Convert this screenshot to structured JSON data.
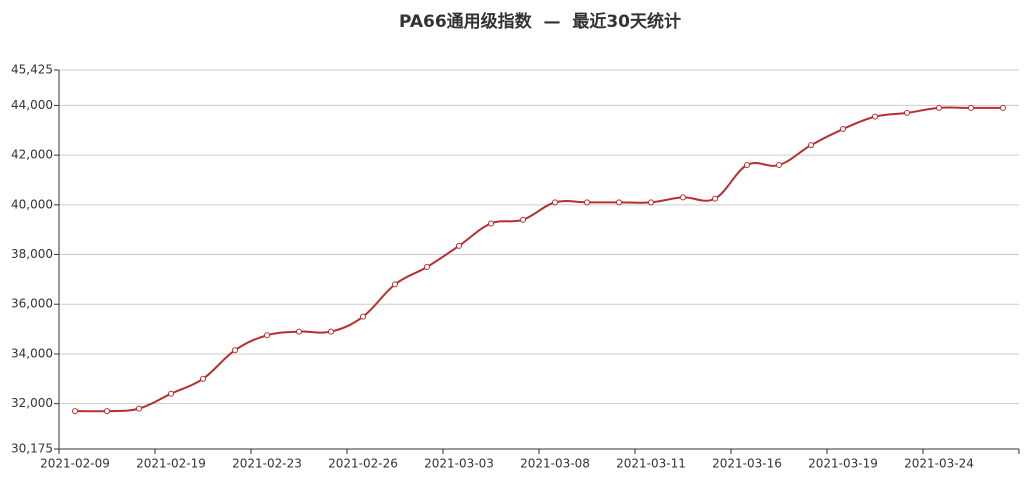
{
  "chart_data": {
    "type": "line",
    "title": "PA66通用级指数  —  最近30天统计",
    "categories": [
      "2021-02-09",
      null,
      null,
      "2021-02-19",
      null,
      null,
      "2021-02-23",
      null,
      null,
      "2021-02-26",
      null,
      null,
      "2021-03-03",
      null,
      null,
      "2021-03-08",
      null,
      null,
      "2021-03-11",
      null,
      null,
      "2021-03-16",
      null,
      null,
      "2021-03-19",
      null,
      null,
      "2021-03-24",
      null,
      null
    ],
    "series": [
      {
        "name": "PA66通用级指数",
        "color": "#b5302f",
        "values": [
          31700,
          31700,
          31800,
          32400,
          33000,
          34150,
          34750,
          34900,
          34900,
          35500,
          36800,
          37500,
          38350,
          39250,
          39400,
          40100,
          40100,
          40100,
          40100,
          40300,
          40250,
          41600,
          41600,
          42400,
          43050,
          43550,
          43700,
          43900,
          43900,
          43900
        ]
      }
    ],
    "ylim": [
      30175,
      45425
    ],
    "yticks": [
      {
        "value": 30175,
        "label": "30,175"
      },
      {
        "value": 32000,
        "label": "32,000"
      },
      {
        "value": 34000,
        "label": "34,000"
      },
      {
        "value": 36000,
        "label": "36,000"
      },
      {
        "value": 38000,
        "label": "38,000"
      },
      {
        "value": 40000,
        "label": "40,000"
      },
      {
        "value": 42000,
        "label": "42,000"
      },
      {
        "value": 44000,
        "label": "44,000"
      },
      {
        "value": 45425,
        "label": "45,425"
      }
    ],
    "grid": true
  }
}
